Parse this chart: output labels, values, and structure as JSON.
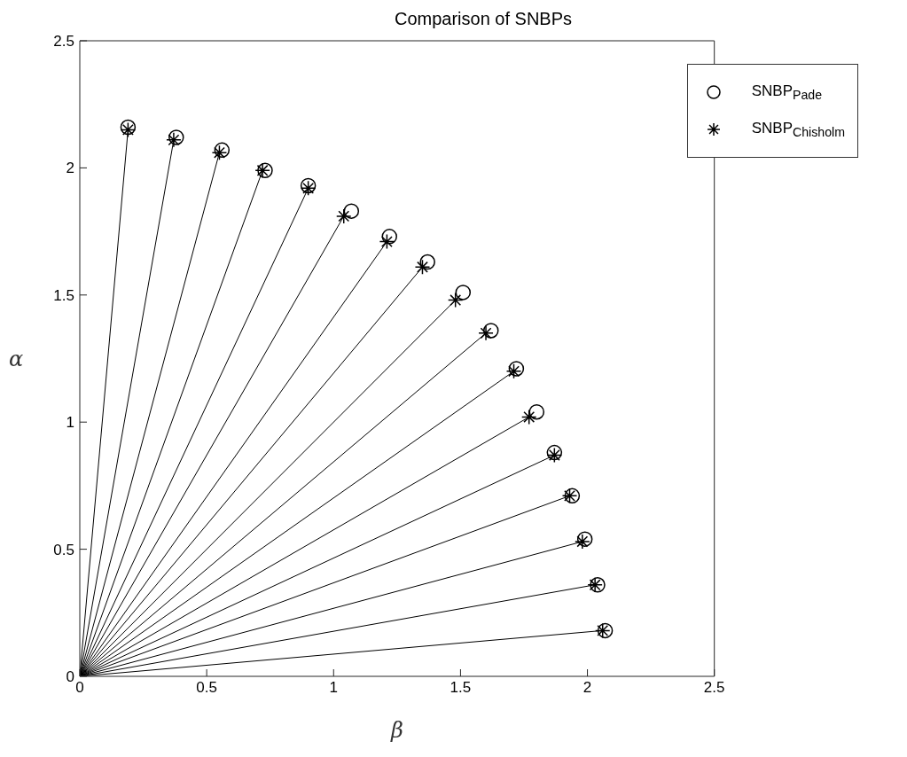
{
  "chart_data": {
    "type": "scatter",
    "title": "Comparison of SNBPs",
    "xlabel": "β",
    "ylabel": "α",
    "xlim": [
      0,
      2.5
    ],
    "ylim": [
      0,
      2.5
    ],
    "xticks": [
      0,
      0.5,
      1,
      1.5,
      2,
      2.5
    ],
    "yticks": [
      0,
      0.5,
      1,
      1.5,
      2,
      2.5
    ],
    "grid": false,
    "legend": "top right",
    "series": [
      {
        "name": "SNBP$_{Pade}$",
        "marker": "circle",
        "color": "#000000",
        "x": [
          0.19,
          0.38,
          0.56,
          0.73,
          0.9,
          1.07,
          1.22,
          1.37,
          1.51,
          1.62,
          1.72,
          1.8,
          1.87,
          1.94,
          1.99,
          2.04,
          2.07
        ],
        "values": [
          2.16,
          2.12,
          2.07,
          1.99,
          1.93,
          1.83,
          1.73,
          1.63,
          1.51,
          1.36,
          1.21,
          1.04,
          0.88,
          0.71,
          0.54,
          0.36,
          0.18
        ]
      },
      {
        "name": "SNBP$_{Chisholm}$",
        "marker": "cross",
        "color": "#000000",
        "x": [
          0.19,
          0.37,
          0.55,
          0.72,
          0.9,
          1.04,
          1.21,
          1.35,
          1.48,
          1.6,
          1.71,
          1.77,
          1.87,
          1.93,
          1.98,
          2.03,
          2.06
        ],
        "values": [
          2.15,
          2.11,
          2.06,
          1.99,
          1.92,
          1.81,
          1.71,
          1.61,
          1.48,
          1.35,
          1.2,
          1.02,
          0.87,
          0.71,
          0.53,
          0.36,
          0.18
        ]
      },
      {
        "type": "line",
        "color": "#000000",
        "x": [
          0,
          0.19
        ],
        "values": [
          0,
          2.15
        ]
      },
      {
        "type": "line",
        "color": "#000000",
        "x": [
          0,
          0.37
        ],
        "values": [
          0,
          2.11
        ]
      },
      {
        "type": "line",
        "color": "#000000",
        "x": [
          0,
          0.55
        ],
        "values": [
          0,
          2.06
        ]
      },
      {
        "type": "line",
        "color": "#000000",
        "x": [
          0,
          0.72
        ],
        "values": [
          0,
          1.99
        ]
      },
      {
        "type": "line",
        "color": "#000000",
        "x": [
          0,
          0.9
        ],
        "values": [
          0,
          1.92
        ]
      },
      {
        "type": "line",
        "color": "#000000",
        "x": [
          0,
          1.04
        ],
        "values": [
          0,
          1.81
        ]
      },
      {
        "type": "line",
        "color": "#000000",
        "x": [
          0,
          1.21
        ],
        "values": [
          0,
          1.71
        ]
      },
      {
        "type": "line",
        "color": "#000000",
        "x": [
          0,
          1.35
        ],
        "values": [
          0,
          1.61
        ]
      },
      {
        "type": "line",
        "color": "#000000",
        "x": [
          0,
          1.48
        ],
        "values": [
          0,
          1.48
        ]
      },
      {
        "type": "line",
        "color": "#000000",
        "x": [
          0,
          1.6
        ],
        "values": [
          0,
          1.35
        ]
      },
      {
        "type": "line",
        "color": "#000000",
        "x": [
          0,
          1.71
        ],
        "values": [
          0,
          1.2
        ]
      },
      {
        "type": "line",
        "color": "#000000",
        "x": [
          0,
          1.77
        ],
        "values": [
          0,
          1.02
        ]
      },
      {
        "type": "line",
        "color": "#000000",
        "x": [
          0,
          1.87
        ],
        "values": [
          0,
          0.87
        ]
      },
      {
        "type": "line",
        "color": "#000000",
        "x": [
          0,
          1.93
        ],
        "values": [
          0,
          0.71
        ]
      },
      {
        "type": "line",
        "color": "#000000",
        "x": [
          0,
          1.98
        ],
        "values": [
          0,
          0.53
        ]
      },
      {
        "type": "line",
        "color": "#000000",
        "x": [
          0,
          2.03
        ],
        "values": [
          0,
          0.36
        ]
      },
      {
        "type": "line",
        "color": "#000000",
        "x": [
          0,
          2.06
        ],
        "values": [
          0,
          0.18
        ]
      }
    ]
  }
}
